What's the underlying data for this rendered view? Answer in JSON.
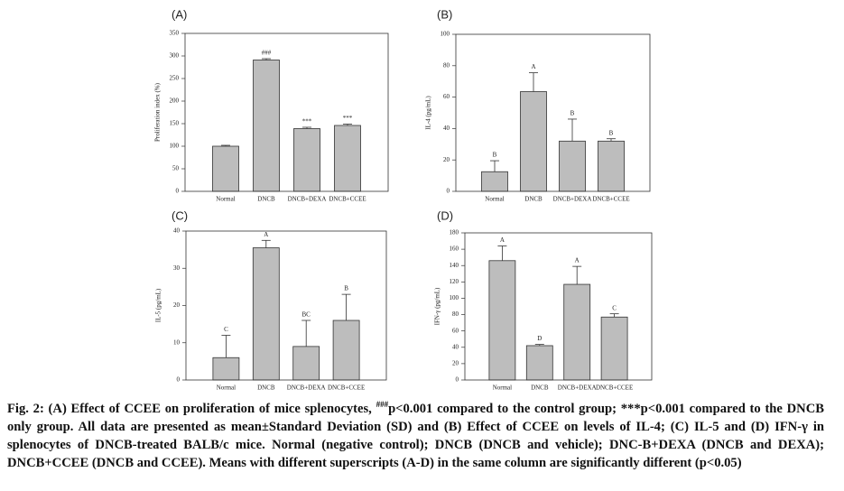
{
  "chart_data": [
    {
      "type": "bar",
      "title": "(A)",
      "ylabel": "Proliferation index (%)",
      "categories": [
        "Normal",
        "DNCB",
        "DNCB+DEXA",
        "DNCB+CCEE"
      ],
      "values": [
        100,
        291,
        139,
        146
      ],
      "errors": [
        2,
        3,
        3,
        3
      ],
      "annotations": [
        null,
        "###",
        "***",
        "***"
      ],
      "color": "#bdbdbd",
      "ylim": [
        0,
        350
      ],
      "yticks": [
        0,
        50,
        100,
        150,
        200,
        250,
        300,
        350
      ]
    },
    {
      "type": "bar",
      "title": "(B)",
      "ylabel": "IL-4 (pg/mL)",
      "categories": [
        "Normal",
        "DNCB",
        "DNCB+DEXA",
        "DNCB+CCEE"
      ],
      "values": [
        12.5,
        63.5,
        32,
        32
      ],
      "errors": [
        7,
        12,
        14,
        1.5
      ],
      "annotations": [
        "B",
        "A",
        "B",
        "B"
      ],
      "color": "#bdbdbd",
      "ylim": [
        0,
        100
      ],
      "yticks": [
        0,
        20,
        40,
        60,
        80,
        100
      ]
    },
    {
      "type": "bar",
      "title": "(C)",
      "ylabel": "IL-5 (pg/mL)",
      "categories": [
        "Normal",
        "DNCB",
        "DNCB+DEXA",
        "DNCB+CCEE"
      ],
      "values": [
        6,
        35.5,
        9,
        16
      ],
      "errors": [
        6,
        2,
        7,
        7
      ],
      "annotations": [
        "C",
        "A",
        "BC",
        "B"
      ],
      "color": "#bdbdbd",
      "ylim": [
        0,
        40
      ],
      "yticks": [
        0,
        10,
        20,
        30,
        40
      ]
    },
    {
      "type": "bar",
      "title": "(D)",
      "ylabel": "IFN-γ (pg/mL)",
      "categories": [
        "Normal",
        "DNCB",
        "DNCB+DEXA",
        "DNCB+CCEE"
      ],
      "values": [
        146,
        42,
        117,
        77
      ],
      "errors": [
        18,
        1.5,
        22,
        4
      ],
      "annotations": [
        "A",
        "D",
        "A",
        "C"
      ],
      "color": "#bdbdbd",
      "ylim": [
        0,
        180
      ],
      "yticks": [
        0,
        20,
        40,
        60,
        80,
        100,
        120,
        140,
        160,
        180
      ]
    }
  ],
  "caption": [
    "Fig. 2: (A) Effect of CCEE on proliferation of mice splenocytes, ",
    "###",
    "p<0.001 compared to the control group; ***p<0.001 compared to the DNCB only group. All data are presented as mean±Standard Deviation (SD) and (B) Effect of CCEE on levels of IL-4; (C) IL-5 and (D) IFN-γ in splenocytes of DNCB-treated BALB/c mice. Normal (negative control); DNCB (DNCB and vehicle); DNC-B+DEXA (DNCB and DEXA); DNCB+CCEE (DNCB and CCEE). Means with different superscripts (A-D) in the same column are significantly different (p<0.05)"
  ]
}
